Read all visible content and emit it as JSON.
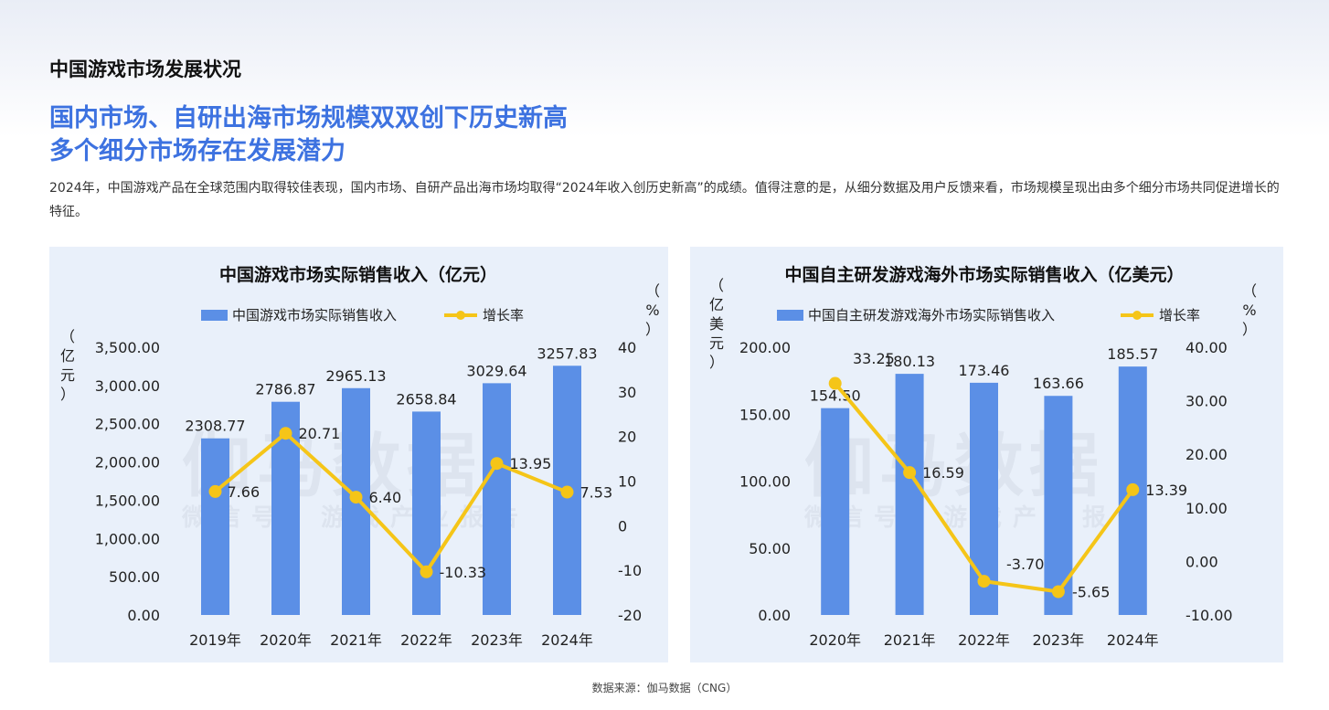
{
  "page": {
    "section_title": "中国游戏市场发展状况",
    "headline_line1": "国内市场、自研出海市场规模双双创下历史新高",
    "headline_line2": "多个细分市场存在发展潜力",
    "body": "2024年，中国游戏产品在全球范围内取得较佳表现，国内市场、自研产品出海市场均取得“2024年收入创历史新高”的成绩。值得注意的是，从细分数据及用户反馈来看，市场规模呈现出由多个细分市场共同促进增长的特征。",
    "source": "数据来源：伽马数据（CNG）",
    "watermark_main": "伽马数据",
    "watermark_sub": "微信号：游戏产业报告"
  },
  "colors": {
    "bar": "#5b8fe6",
    "line": "#f5c518",
    "title_accent": "#3d72e0",
    "panel_bg": "#e9f0fa"
  },
  "chart_data": [
    {
      "type": "bar",
      "title": "中国游戏市场实际销售收入（亿元）",
      "categories": [
        "2019年",
        "2020年",
        "2021年",
        "2022年",
        "2023年",
        "2024年"
      ],
      "series": [
        {
          "name": "中国游戏市场实际销售收入",
          "type": "bar",
          "axis": "left",
          "values": [
            2308.77,
            2786.87,
            2965.13,
            2658.84,
            3029.64,
            3257.83
          ],
          "labels": [
            "2308.77",
            "2786.87",
            "2965.13",
            "2658.84",
            "3029.64",
            "3257.83"
          ]
        },
        {
          "name": "增长率",
          "type": "line",
          "axis": "right",
          "values": [
            7.66,
            20.71,
            6.4,
            -10.33,
            13.95,
            7.53
          ],
          "labels": [
            "7.66",
            "20.71",
            "6.40",
            "-10.33",
            "13.95",
            "7.53"
          ]
        }
      ],
      "ylabel": "亿元",
      "y2label": "%",
      "ylim": [
        0,
        3500
      ],
      "yticks": [
        "0.00",
        "500.00",
        "1,000.00",
        "1,500.00",
        "2,000.00",
        "2,500.00",
        "3,000.00",
        "3,500.00"
      ],
      "y2lim": [
        -20,
        40
      ],
      "y2ticks": [
        "-20",
        "-10",
        "0",
        "10",
        "20",
        "30",
        "40"
      ],
      "legend_position": "top"
    },
    {
      "type": "bar",
      "title": "中国自主研发游戏海外市场实际销售收入（亿美元）",
      "categories": [
        "2020年",
        "2021年",
        "2022年",
        "2023年",
        "2024年"
      ],
      "series": [
        {
          "name": "中国自主研发游戏海外市场实际销售收入",
          "type": "bar",
          "axis": "left",
          "values": [
            154.5,
            180.13,
            173.46,
            163.66,
            185.57
          ],
          "labels": [
            "154.50",
            "180.13",
            "173.46",
            "163.66",
            "185.57"
          ]
        },
        {
          "name": "增长率",
          "type": "line",
          "axis": "right",
          "values": [
            33.25,
            16.59,
            -3.7,
            -5.65,
            13.39
          ],
          "labels": [
            "33.25",
            "16.59",
            "-3.70",
            "-5.65",
            "13.39"
          ]
        }
      ],
      "ylabel": "亿美元",
      "y2label": "%",
      "ylim": [
        0,
        200
      ],
      "yticks": [
        "0.00",
        "50.00",
        "100.00",
        "150.00",
        "200.00"
      ],
      "y2lim": [
        -10,
        40
      ],
      "y2ticks": [
        "-10.00",
        "0.00",
        "10.00",
        "20.00",
        "30.00",
        "40.00"
      ],
      "legend_position": "top"
    }
  ]
}
